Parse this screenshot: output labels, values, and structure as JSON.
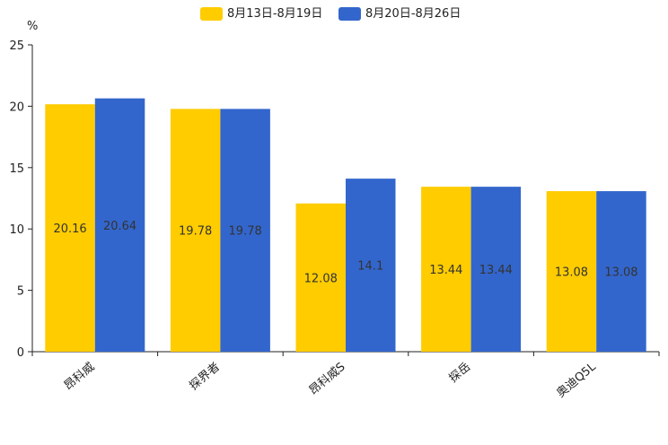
{
  "chart_data": {
    "type": "bar",
    "title": "",
    "xlabel": "",
    "ylabel": "%",
    "ylim": [
      0,
      25
    ],
    "yticks": [
      0,
      5,
      10,
      15,
      20,
      25
    ],
    "categories": [
      "昂科威",
      "探界者",
      "昂科威S",
      "探岳",
      "奥迪Q5L"
    ],
    "series": [
      {
        "name": "8月13日-8月19日",
        "color": "#FFCC00",
        "values": [
          20.16,
          19.78,
          12.08,
          13.44,
          13.08
        ]
      },
      {
        "name": "8月20日-8月26日",
        "color": "#3366CC",
        "values": [
          20.64,
          19.78,
          14.1,
          13.44,
          13.08
        ]
      }
    ],
    "legend_position": "top-center",
    "grid": false
  }
}
